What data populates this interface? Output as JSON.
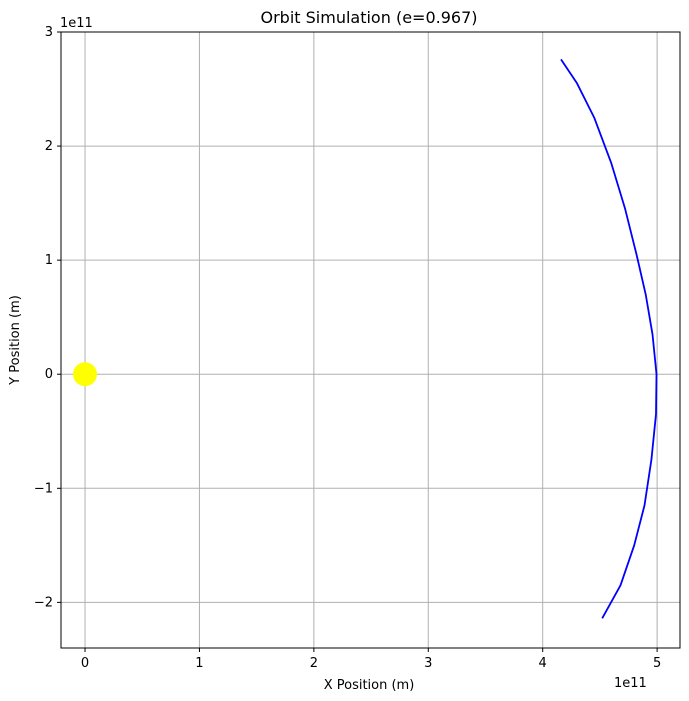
{
  "chart_data": {
    "type": "line",
    "title": "Orbit Simulation (e=0.967)",
    "xlabel": "X Position (m)",
    "ylabel": "Y Position (m)",
    "x_offset_label": "1e11",
    "y_offset_label": "1e11",
    "xlim": [
      -21000000000.0,
      520000000000.0
    ],
    "ylim": [
      -240000000000.0,
      300000000000.0
    ],
    "grid": true,
    "x_ticks": [
      0,
      100000000000.0,
      200000000000.0,
      300000000000.0,
      400000000000.0,
      500000000000.0
    ],
    "x_tick_labels": [
      "0",
      "1",
      "2",
      "3",
      "4",
      "5"
    ],
    "y_ticks": [
      -200000000000.0,
      -100000000000.0,
      0,
      100000000000.0,
      200000000000.0,
      300000000000.0
    ],
    "y_tick_labels": [
      "−2",
      "−1",
      "0",
      "1",
      "2",
      "3"
    ],
    "series": [
      {
        "color": "#0000ff",
        "points": [
          [
            416000000000.0,
            276000000000.0
          ],
          [
            430000000000.0,
            255000000000.0
          ],
          [
            445000000000.0,
            225000000000.0
          ],
          [
            460000000000.0,
            185000000000.0
          ],
          [
            472000000000.0,
            145000000000.0
          ],
          [
            482000000000.0,
            105000000000.0
          ],
          [
            490000000000.0,
            70000000000.0
          ],
          [
            496000000000.0,
            35000000000.0
          ],
          [
            499500000000.0,
            0.0
          ],
          [
            499000000000.0,
            -35000000000.0
          ],
          [
            495000000000.0,
            -75000000000.0
          ],
          [
            489000000000.0,
            -115000000000.0
          ],
          [
            480000000000.0,
            -150000000000.0
          ],
          [
            468000000000.0,
            -185000000000.0
          ],
          [
            452000000000.0,
            -214000000000.0
          ]
        ]
      }
    ],
    "sun": {
      "x": 0,
      "y": 0,
      "color": "#ffff00"
    }
  }
}
